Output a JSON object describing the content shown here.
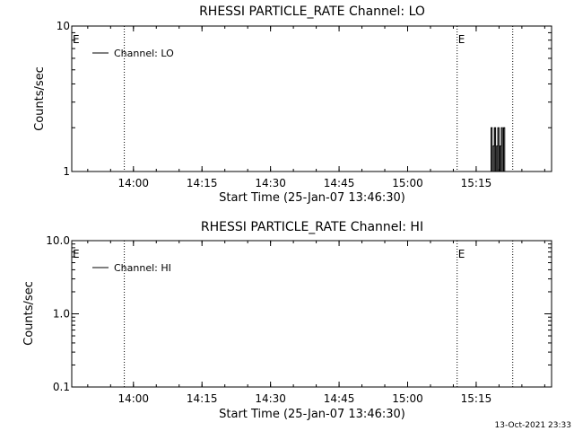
{
  "footer": {
    "timestamp": "13-Oct-2021 23:33"
  },
  "chart_data": [
    {
      "type": "line",
      "title": "RHESSI PARTICLE_RATE Channel: LO",
      "xlabel": "Start Time (25-Jan-07 13:46:30)",
      "ylabel": "Counts/sec",
      "yscale": "log",
      "ylim": [
        1,
        10
      ],
      "xlim": [
        "13:46:30",
        "15:31:30"
      ],
      "x_ticks": [
        "14:00",
        "14:15",
        "14:30",
        "14:45",
        "15:00",
        "15:15"
      ],
      "y_ticks": [
        "1",
        "10"
      ],
      "legend": {
        "position": "top-left",
        "entries": [
          "Channel: LO"
        ]
      },
      "event_lines": [
        "13:58:00",
        "15:10:50",
        "15:23:00"
      ],
      "event_markers": [
        {
          "label": "E",
          "x": "13:46:30"
        },
        {
          "label": "E",
          "x": "15:10:50"
        }
      ],
      "series": [
        {
          "name": "Channel: LO",
          "x": [
            "15:18:00",
            "15:18:15",
            "15:18:30",
            "15:18:45",
            "15:19:00",
            "15:19:15",
            "15:19:30",
            "15:19:45",
            "15:20:00",
            "15:20:15",
            "15:20:30",
            "15:20:45",
            "15:21:00",
            "15:21:15"
          ],
          "values": [
            1,
            2,
            1,
            1.5,
            2,
            1,
            1.5,
            2,
            1,
            1.5,
            2,
            1,
            2,
            1
          ]
        }
      ]
    },
    {
      "type": "line",
      "title": "RHESSI PARTICLE_RATE Channel: HI",
      "xlabel": "Start Time (25-Jan-07 13:46:30)",
      "ylabel": "Counts/sec",
      "yscale": "log",
      "ylim": [
        0.1,
        10
      ],
      "xlim": [
        "13:46:30",
        "15:31:30"
      ],
      "x_ticks": [
        "14:00",
        "14:15",
        "14:30",
        "14:45",
        "15:00",
        "15:15"
      ],
      "y_ticks": [
        "0.1",
        "1.0",
        "10.0"
      ],
      "legend": {
        "position": "top-left",
        "entries": [
          "Channel: HI"
        ]
      },
      "event_lines": [
        "13:58:00",
        "15:10:50",
        "15:23:00"
      ],
      "event_markers": [
        {
          "label": "E",
          "x": "13:46:30"
        },
        {
          "label": "E",
          "x": "15:10:50"
        }
      ],
      "series": [
        {
          "name": "Channel: HI",
          "x": [],
          "values": []
        }
      ]
    }
  ]
}
